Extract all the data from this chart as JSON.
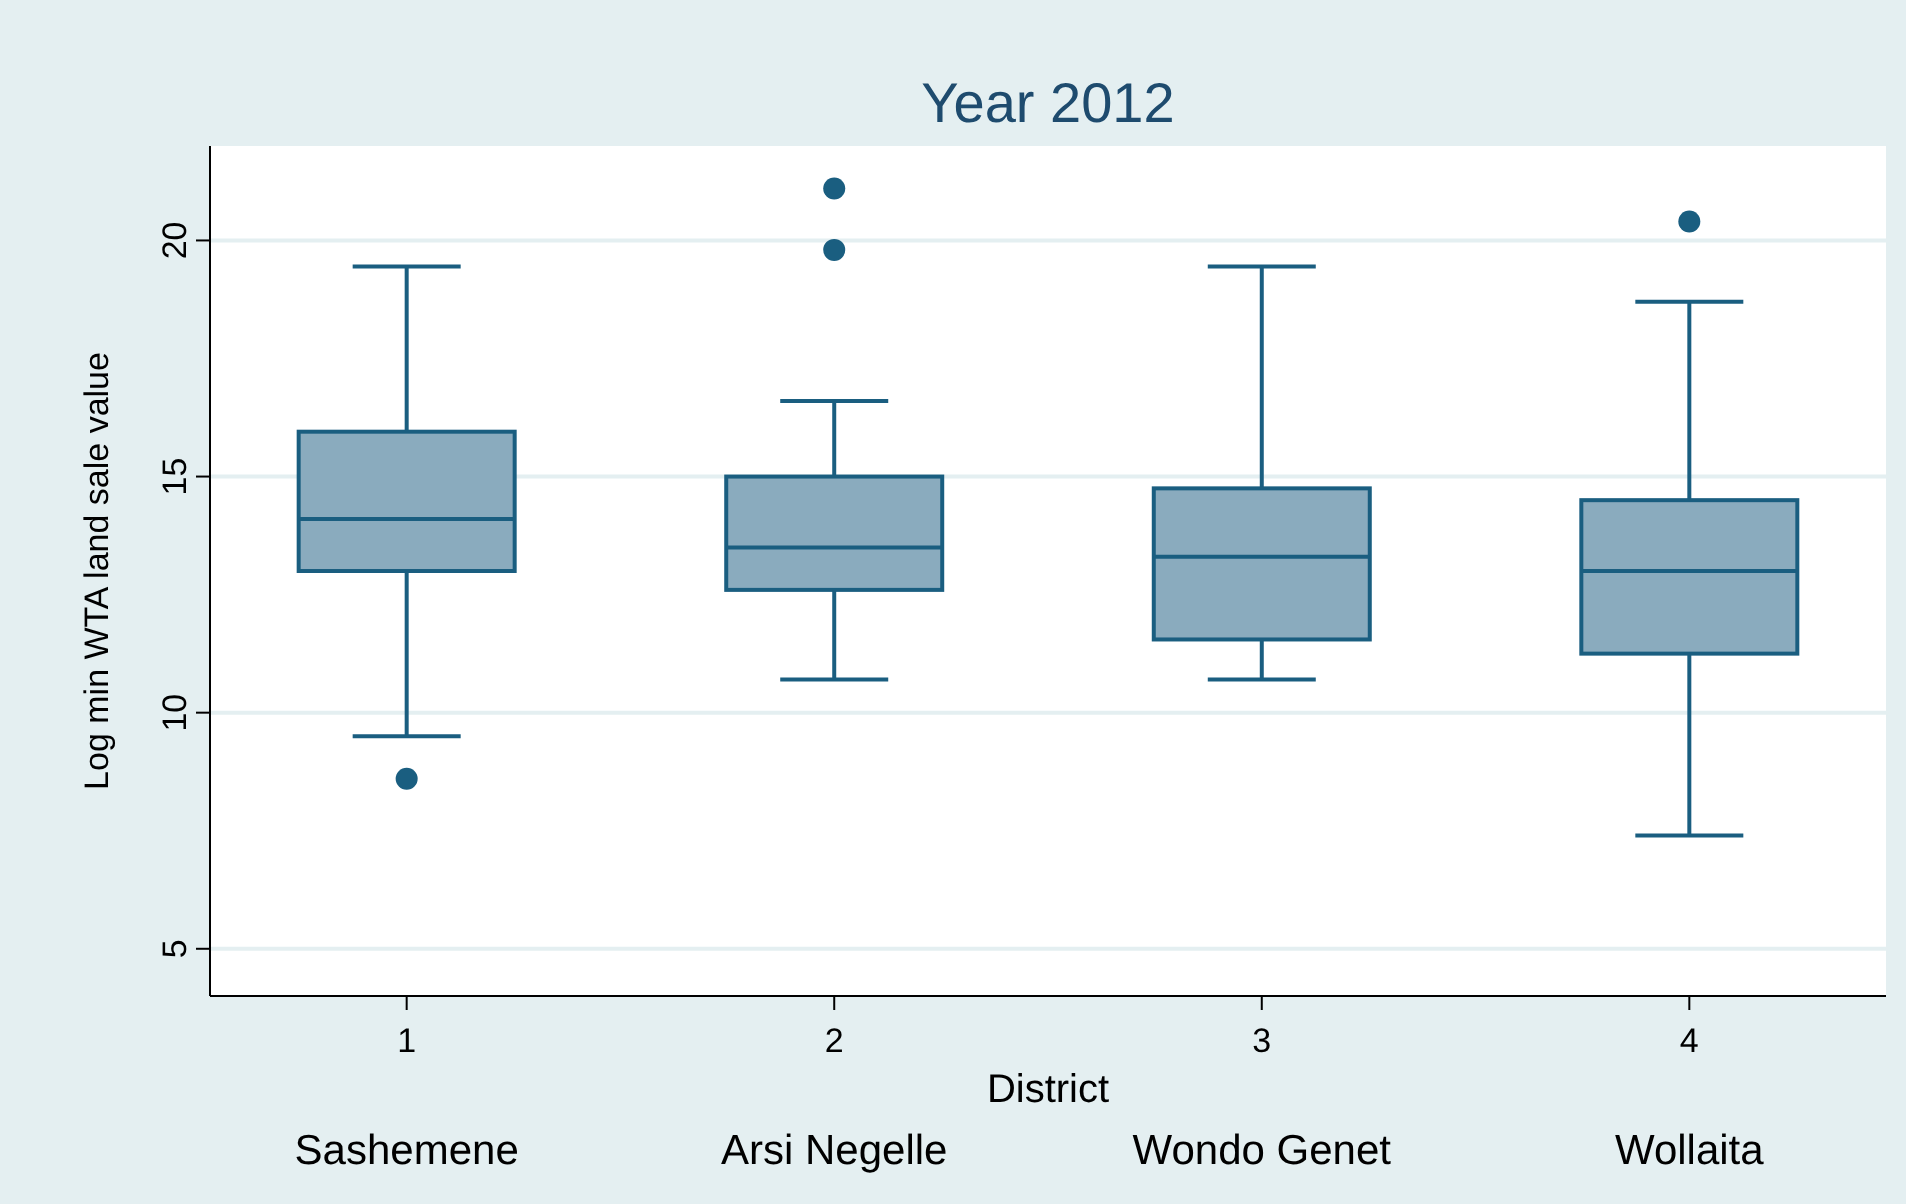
{
  "chart_data": {
    "type": "box",
    "title": "Year 2012",
    "xlabel": "District",
    "ylabel": "Log min WTA land sale value",
    "categories": [
      "1",
      "2",
      "3",
      "4"
    ],
    "boxes": [
      {
        "low": 9.5,
        "q1": 13.0,
        "median": 14.1,
        "q3": 15.95,
        "high": 19.45,
        "outliers": [
          8.6
        ]
      },
      {
        "low": 10.7,
        "q1": 12.6,
        "median": 13.5,
        "q3": 15.0,
        "high": 16.6,
        "outliers": [
          19.8,
          21.1
        ]
      },
      {
        "low": 10.7,
        "q1": 11.55,
        "median": 13.3,
        "q3": 14.75,
        "high": 19.45
      },
      {
        "low": 7.4,
        "q1": 11.25,
        "median": 13.0,
        "q3": 14.5,
        "high": 18.7,
        "outliers": [
          20.4
        ]
      }
    ],
    "color": "#8aabbe",
    "ylim": [
      4,
      22
    ],
    "yticks": [
      5,
      10,
      15,
      20
    ],
    "grid": "y",
    "marker": "circle",
    "annotations": [
      "Sashemene",
      "Arsi Negelle",
      "Wondo Genet",
      "Wollaita"
    ]
  }
}
